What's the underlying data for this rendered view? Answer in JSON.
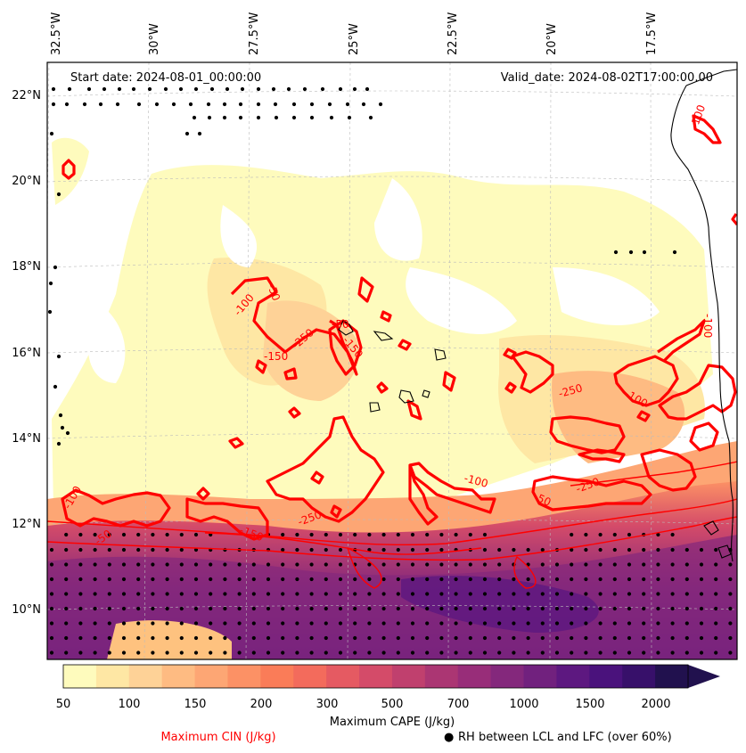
{
  "map": {
    "start_date": "Start date: 2024-08-01_00:00:00",
    "valid_date": "Valid_date: 2024-08-02T17:00:00.00",
    "lon_labels": [
      "32.5°W",
      "30°W",
      "27.5°W",
      "25°W",
      "22.5°W",
      "20°W",
      "17.5°W"
    ],
    "lat_labels": [
      "22°N",
      "20°N",
      "18°N",
      "16°N",
      "14°N",
      "12°N",
      "10°N"
    ],
    "cin_contour_labels": [
      "-50",
      "-100",
      "-150",
      "-250",
      "-50",
      "-150",
      "-50",
      "-100",
      "-250",
      "-150",
      "-50",
      "-100",
      "-250",
      "-250",
      "-100",
      "-100",
      "-100"
    ]
  },
  "colorbar": {
    "title": "Maximum CAPE (J/kg)",
    "ticks": [
      "50",
      "100",
      "150",
      "200",
      "300",
      "500",
      "700",
      "1000",
      "1500",
      "2000"
    ],
    "colors": [
      "#fefbbd",
      "#fee7a4",
      "#fed297",
      "#febb82",
      "#fda674",
      "#fc9165",
      "#fa7c58",
      "#f36b5c",
      "#e55a62",
      "#d44b69",
      "#c0406e",
      "#ab3673",
      "#982d79",
      "#84287c",
      "#71217e",
      "#5d1880",
      "#4a127c",
      "#37106a",
      "#21114e"
    ]
  },
  "legend": {
    "cin_label": "Maximum CIN (J/kg)",
    "cin_color": "#ff0000",
    "rh_marker": "●",
    "rh_label": "RH between LCL and LFC (over 60%)"
  }
}
